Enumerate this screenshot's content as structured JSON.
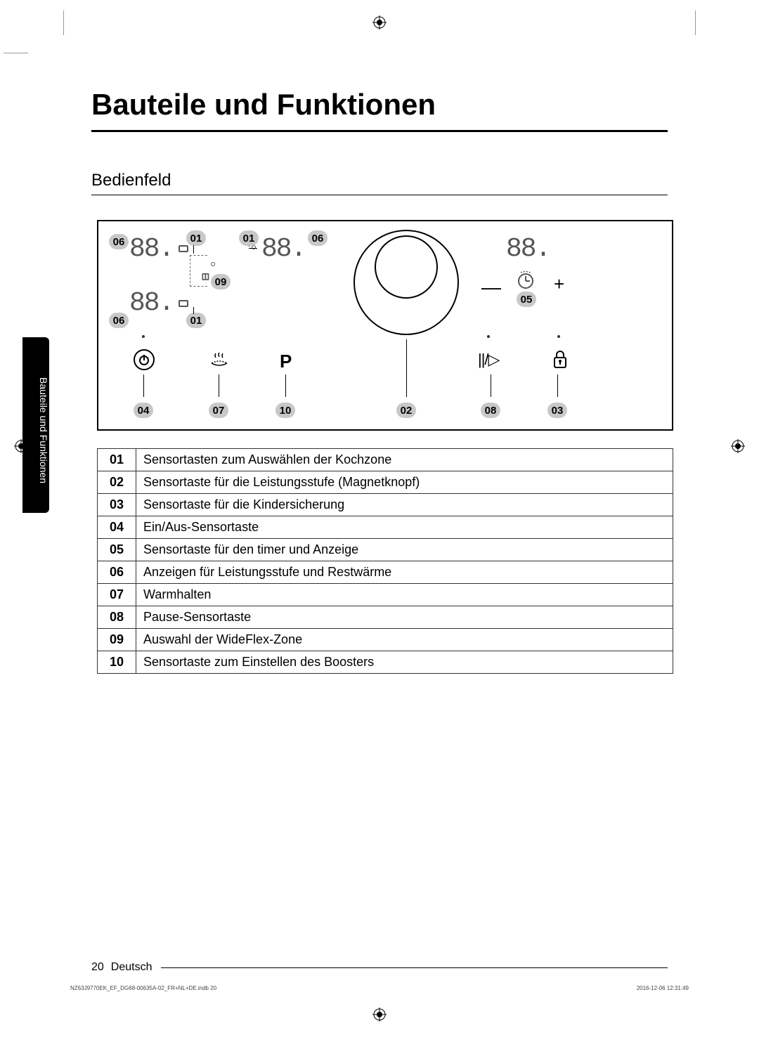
{
  "title": "Bauteile und Funktionen",
  "subtitle": "Bedienfeld",
  "sideTab": "Bauteile und Funktionen",
  "pageNum": "20",
  "lang": "Deutsch",
  "printFile": "NZ63J9770EK_EF_DG68-00635A-02_FR+NL+DE.indb   20",
  "printTime": "2016-12-06    12:31:49",
  "segLabel": "88.",
  "pSymbol": "P",
  "powerSymbol": "I",
  "minusSymbol": "—",
  "plusSymbol": "+",
  "pauseSymbol": "||/▷",
  "callouts": {
    "c01": "01",
    "c02": "02",
    "c03": "03",
    "c04": "04",
    "c05": "05",
    "c06": "06",
    "c07": "07",
    "c08": "08",
    "c09": "09",
    "c10": "10"
  },
  "legend": [
    {
      "n": "01",
      "t": "Sensortasten zum Auswählen der Kochzone"
    },
    {
      "n": "02",
      "t": "Sensortaste für die Leistungsstufe (Magnetknopf)"
    },
    {
      "n": "03",
      "t": "Sensortaste für die Kindersicherung"
    },
    {
      "n": "04",
      "t": "Ein/Aus-Sensortaste"
    },
    {
      "n": "05",
      "t": "Sensortaste für den timer und Anzeige"
    },
    {
      "n": "06",
      "t": "Anzeigen für Leistungsstufe und Restwärme"
    },
    {
      "n": "07",
      "t": "Warmhalten"
    },
    {
      "n": "08",
      "t": "Pause-Sensortaste"
    },
    {
      "n": "09",
      "t": "Auswahl der WideFlex-Zone"
    },
    {
      "n": "10",
      "t": "Sensortaste zum Einstellen des Boosters"
    }
  ]
}
